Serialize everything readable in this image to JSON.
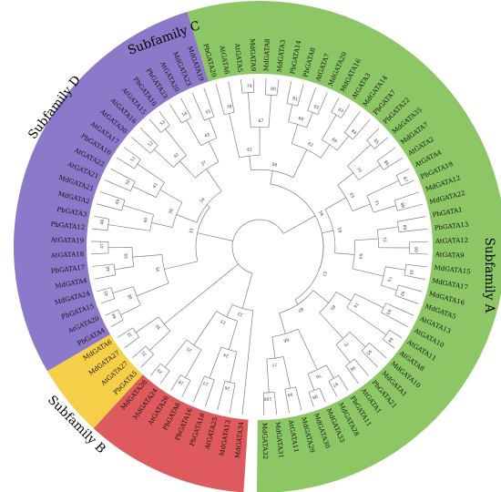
{
  "figure": {
    "subfamilies": [
      {
        "label": "Subfamily A",
        "color": "#8cc665",
        "leaves": [
          "MdGATA32",
          "MdGATA31",
          "AtGATA11",
          "MdGATA29",
          "MdGATA30",
          "MdGATA33",
          "MdGATA28",
          "PbGATA11",
          "AtGATA1",
          "PbGATA21",
          "MdGATA1",
          "MdGATA10",
          "AtGATA8",
          "AtGATA11",
          "AtGATA10",
          "AtGATA13",
          "MdGATA5",
          "MdGATA16",
          "MdGATA17",
          "MdGATA15",
          "AtGATA9",
          "AtGATA12",
          "PbGATA13",
          "PbGATA1",
          "MdGATA22",
          "MdGATA12",
          "PbGATA19",
          "AtGATA4",
          "AtGATA2",
          "MdGATA7",
          "MdGATA35",
          "PbGATA22",
          "PbGATA7",
          "MdGATA14",
          "AtGATA3",
          "MdGATA16",
          "MdGATA20",
          "AtGATA7",
          "PbGATA8",
          "PbGATA14",
          "MdGATA3",
          "MdGATA8",
          "MdGATA9",
          "AtGATA5",
          "AtGATA6",
          "PbGATA20"
        ]
      },
      {
        "label": "Subfamily B",
        "color": "#8c79c9",
        "leaves": [
          "MdGATA19",
          "MdGATA23",
          "AtGATA20",
          "PbGATA23",
          "PbGATA16",
          "AtGATA15",
          "AtGATA16",
          "AtGATA30",
          "AtGATA17",
          "PbGATA10",
          "AtGATA22",
          "AtGATA21",
          "MdGATA21",
          "MdGATA2",
          "PbGATA3",
          "PbGATA12",
          "AtGATA19",
          "AtGATA18",
          "PbGATA17",
          "MdGATA4",
          "MdGATA24",
          "PbGATA15",
          "AtGATA20",
          "PbGATA4"
        ]
      },
      {
        "label": "Subfamily D",
        "color": "#f5cf48",
        "leaves": [
          "MdGATA6",
          "MdGATA27",
          "AtGATA27",
          "PbGATA5"
        ]
      },
      {
        "label": "Subfamily C",
        "color": "#df5a5c",
        "leaves": [
          "MdGATA26",
          "MdGATA24",
          "AtGATA26",
          "PbGATA6",
          "PbGATA16",
          "PbGATA18",
          "AtGATA25",
          "MdGATA13",
          "MdGATA34"
        ]
      }
    ],
    "bootstrap_values": [
      "100",
      "99",
      "98",
      "97",
      "96",
      "95",
      "94",
      "93",
      "92",
      "91",
      "90",
      "89",
      "88",
      "87",
      "86",
      "85",
      "84",
      "83",
      "82",
      "81",
      "80",
      "79",
      "78",
      "77",
      "76",
      "75",
      "74",
      "73",
      "72",
      "71",
      "70",
      "69",
      "68",
      "67",
      "66",
      "65",
      "64",
      "63",
      "62",
      "61",
      "60",
      "59",
      "58",
      "57",
      "56",
      "55",
      "54",
      "53",
      "52",
      "51",
      "50",
      "49",
      "48",
      "47",
      "46",
      "45",
      "44",
      "43",
      "42",
      "41",
      "40",
      "39",
      "38",
      "37",
      "36",
      "35",
      "34",
      "33",
      "32",
      "31",
      "30",
      "29",
      "28",
      "27",
      "26",
      "25",
      "24",
      "23",
      "22",
      "21",
      "20",
      "19",
      "18",
      "17",
      "16",
      "15",
      "14",
      "13",
      "12",
      "11",
      "10",
      "9",
      "8",
      "7",
      "6",
      "5",
      "4",
      "3",
      "2",
      "1",
      "100",
      "99",
      "98",
      "97",
      "96",
      "95",
      "94",
      "93",
      "92",
      "91",
      "90",
      "89",
      "88",
      "87",
      "86",
      "85",
      "84",
      "83",
      "82",
      "81",
      "80"
    ]
  }
}
